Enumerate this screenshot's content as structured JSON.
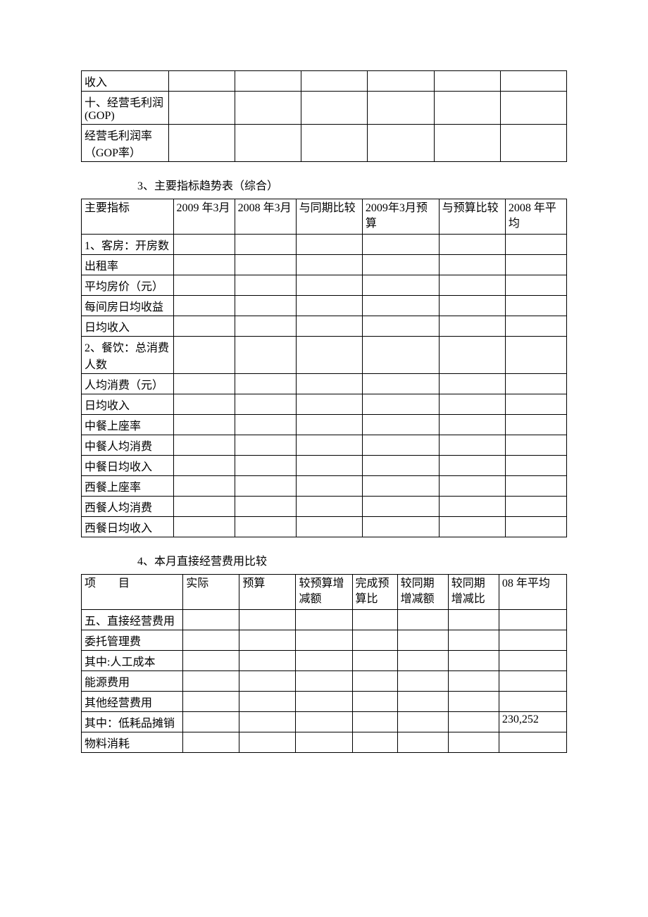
{
  "table1": {
    "rows": [
      {
        "label": "收入"
      },
      {
        "label": "十、经营毛利润(GOP)"
      },
      {
        "label": "经营毛利润率（GOP率）"
      }
    ],
    "columns_count": 6
  },
  "section3": {
    "heading": "3、主要指标趋势表（综合）",
    "headers": [
      "主要指标",
      "2009 年3月",
      "2008 年3月",
      "与同期比较",
      "2009年3月预算",
      "与预算比较",
      "2008 年平均"
    ],
    "rows": [
      {
        "label": "1、客房：开房数"
      },
      {
        "label": "出租率"
      },
      {
        "label": "平均房价（元）"
      },
      {
        "label": "每间房日均收益"
      },
      {
        "label": "日均收入"
      },
      {
        "label": "2、餐饮：总消费人数"
      },
      {
        "label": "人均消费（元）"
      },
      {
        "label": "日均收入"
      },
      {
        "label": "中餐上座率"
      },
      {
        "label": "中餐人均消费"
      },
      {
        "label": "中餐日均收入"
      },
      {
        "label": "西餐上座率"
      },
      {
        "label": "西餐人均消费"
      },
      {
        "label": "西餐日均收入"
      }
    ]
  },
  "section4": {
    "heading": "4、本月直接经营费用比较",
    "headers": [
      "项　　目",
      "实际",
      "预算",
      "较预算增减额",
      "完成预算比",
      "较同期增减额",
      "较同期增减比",
      "08 年平均"
    ],
    "rows": [
      {
        "label": "五、直接经营费用",
        "cells": [
          "",
          "",
          "",
          "",
          "",
          "",
          ""
        ]
      },
      {
        "label": "委托管理费",
        "cells": [
          "",
          "",
          "",
          "",
          "",
          "",
          ""
        ]
      },
      {
        "label": "其中:人工成本",
        "cells": [
          "",
          "",
          "",
          "",
          "",
          "",
          ""
        ]
      },
      {
        "label": "能源费用",
        "cells": [
          "",
          "",
          "",
          "",
          "",
          "",
          ""
        ]
      },
      {
        "label": "其他经营费用",
        "cells": [
          "",
          "",
          "",
          "",
          "",
          "",
          ""
        ]
      },
      {
        "label": "其中：低耗品摊销",
        "cells": [
          "",
          "",
          "",
          "",
          "",
          "",
          "230,252"
        ]
      },
      {
        "label": " 物料消耗",
        "cells": [
          "",
          "",
          "",
          "",
          "",
          "",
          ""
        ]
      }
    ]
  }
}
